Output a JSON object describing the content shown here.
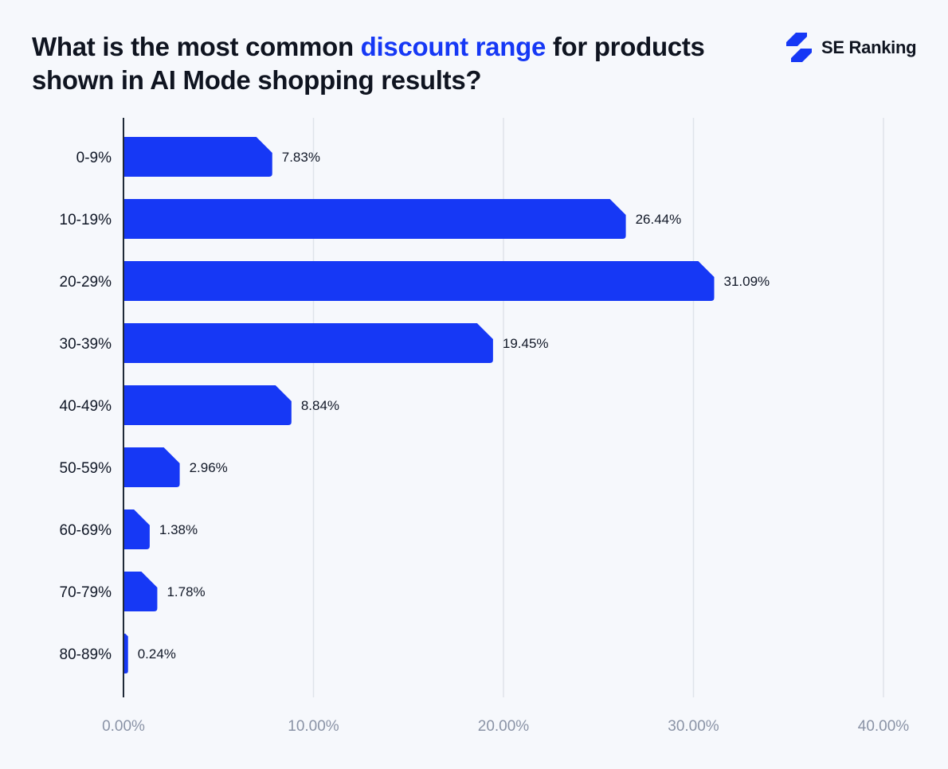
{
  "title": {
    "before": "What is the most common ",
    "highlight": "discount range",
    "after": " for products shown in AI Mode shopping results?"
  },
  "logo": {
    "text": "SE Ranking",
    "icon": "se-ranking-bolt-icon"
  },
  "colors": {
    "bar": "#1638f5",
    "highlight": "#1638f5",
    "background": "#f6f8fc",
    "grid": "#dfe3ea"
  },
  "chart_data": {
    "type": "bar",
    "orientation": "horizontal",
    "categories": [
      "0-9%",
      "10-19%",
      "20-29%",
      "30-39%",
      "40-49%",
      "50-59%",
      "60-69%",
      "70-79%",
      "80-89%"
    ],
    "values": [
      7.83,
      26.44,
      31.09,
      19.45,
      8.84,
      2.96,
      1.38,
      1.78,
      0.24
    ],
    "value_labels": [
      "7.83%",
      "26.44%",
      "31.09%",
      "19.45%",
      "8.84%",
      "2.96%",
      "1.38%",
      "1.78%",
      "0.24%"
    ],
    "xlim": [
      0,
      40
    ],
    "xticks": [
      0,
      10,
      20,
      30,
      40
    ],
    "xtick_labels": [
      "0.00%",
      "10.00%",
      "20.00%",
      "30.00%",
      "40.00%"
    ],
    "grid": "vertical",
    "legend": "none"
  }
}
